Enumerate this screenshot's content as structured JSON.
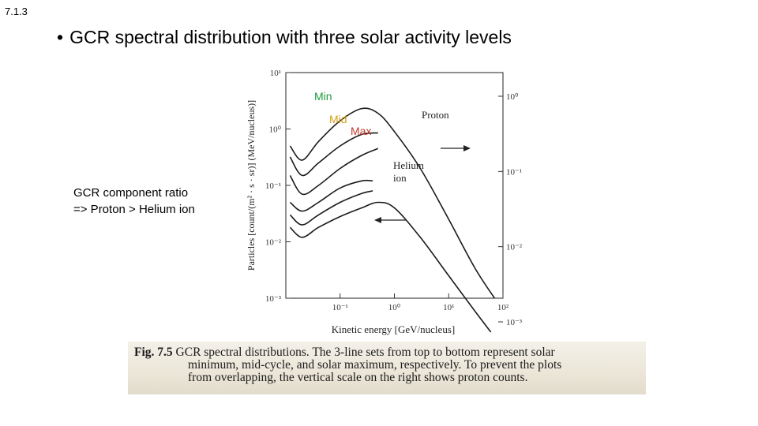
{
  "slide": {
    "number": "7.1.3",
    "bullet": "•",
    "title": "GCR spectral distribution with three solar activity levels",
    "note_line1": "GCR component ratio",
    "note_line2": "=> Proton > Helium ion"
  },
  "overlay_labels": {
    "min": {
      "text": "Min",
      "color": "#1e9a3c"
    },
    "mid": {
      "text": "Mid",
      "color": "#d4a017"
    },
    "max": {
      "text": "Max",
      "color": "#c0392b"
    }
  },
  "chart_data": {
    "type": "line",
    "xlabel": "Kinetic energy [GeV/nucleus]",
    "ylabel": "Particles [count/(m² · s · sr)] (MeV/nucleus)]",
    "x_scale": "log",
    "y_scale": "log",
    "xlim": [
      0.01,
      100
    ],
    "ylim_left": [
      0.001,
      10
    ],
    "ylim_right": [
      0.001,
      1
    ],
    "x_ticks": [
      "10⁻¹",
      "10⁰",
      "10¹",
      "10²"
    ],
    "y_ticks_left": [
      "10¹",
      "10⁰",
      "10⁻¹",
      "10⁻²",
      "10⁻³"
    ],
    "y_ticks_right": [
      "10⁰",
      "10⁻¹",
      "10⁻²",
      "10⁻³"
    ],
    "annotations": [
      "Proton",
      "Helium",
      "ion"
    ],
    "series": [
      {
        "group": "Proton",
        "level": "solar minimum",
        "points": [
          [
            0.012,
            0.5
          ],
          [
            0.02,
            0.28
          ],
          [
            0.04,
            0.6
          ],
          [
            0.1,
            1.4
          ],
          [
            0.25,
            2.3
          ],
          [
            0.5,
            1.9
          ],
          [
            1,
            0.9
          ],
          [
            3,
            0.2
          ],
          [
            10,
            0.025
          ],
          [
            30,
            0.0035
          ],
          [
            70,
            0.001
          ]
        ]
      },
      {
        "group": "Proton",
        "level": "mid-cycle",
        "points": [
          [
            0.012,
            0.32
          ],
          [
            0.02,
            0.15
          ],
          [
            0.04,
            0.25
          ],
          [
            0.1,
            0.5
          ],
          [
            0.25,
            0.8
          ],
          [
            0.5,
            0.85
          ]
        ]
      },
      {
        "group": "Proton",
        "level": "solar maximum",
        "points": [
          [
            0.012,
            0.15
          ],
          [
            0.02,
            0.07
          ],
          [
            0.04,
            0.1
          ],
          [
            0.1,
            0.2
          ],
          [
            0.25,
            0.34
          ],
          [
            0.5,
            0.45
          ]
        ]
      },
      {
        "group": "Helium ion",
        "level": "solar minimum",
        "points": [
          [
            0.012,
            0.05
          ],
          [
            0.02,
            0.035
          ],
          [
            0.04,
            0.05
          ],
          [
            0.1,
            0.09
          ],
          [
            0.25,
            0.12
          ],
          [
            0.4,
            0.12
          ]
        ]
      },
      {
        "group": "Helium ion",
        "level": "mid-cycle",
        "points": [
          [
            0.012,
            0.03
          ],
          [
            0.02,
            0.02
          ],
          [
            0.04,
            0.03
          ],
          [
            0.1,
            0.05
          ],
          [
            0.25,
            0.072
          ],
          [
            0.4,
            0.08
          ]
        ]
      },
      {
        "group": "Helium ion",
        "level": "solar maximum",
        "points": [
          [
            0.012,
            0.018
          ],
          [
            0.02,
            0.012
          ],
          [
            0.04,
            0.018
          ],
          [
            0.1,
            0.028
          ],
          [
            0.25,
            0.04
          ],
          [
            0.5,
            0.05
          ],
          [
            1,
            0.04
          ],
          [
            3,
            0.012
          ],
          [
            10,
            0.0025
          ],
          [
            30,
            0.0006
          ],
          [
            60,
            0.00025
          ]
        ]
      }
    ]
  },
  "caption": {
    "figno": "Fig. 7.5",
    "line1": "GCR spectral distributions. The 3-line sets from top to bottom represent solar",
    "line2": "minimum, mid-cycle, and solar maximum, respectively. To prevent the plots",
    "line3": "from overlapping, the vertical scale on the right shows proton counts."
  }
}
